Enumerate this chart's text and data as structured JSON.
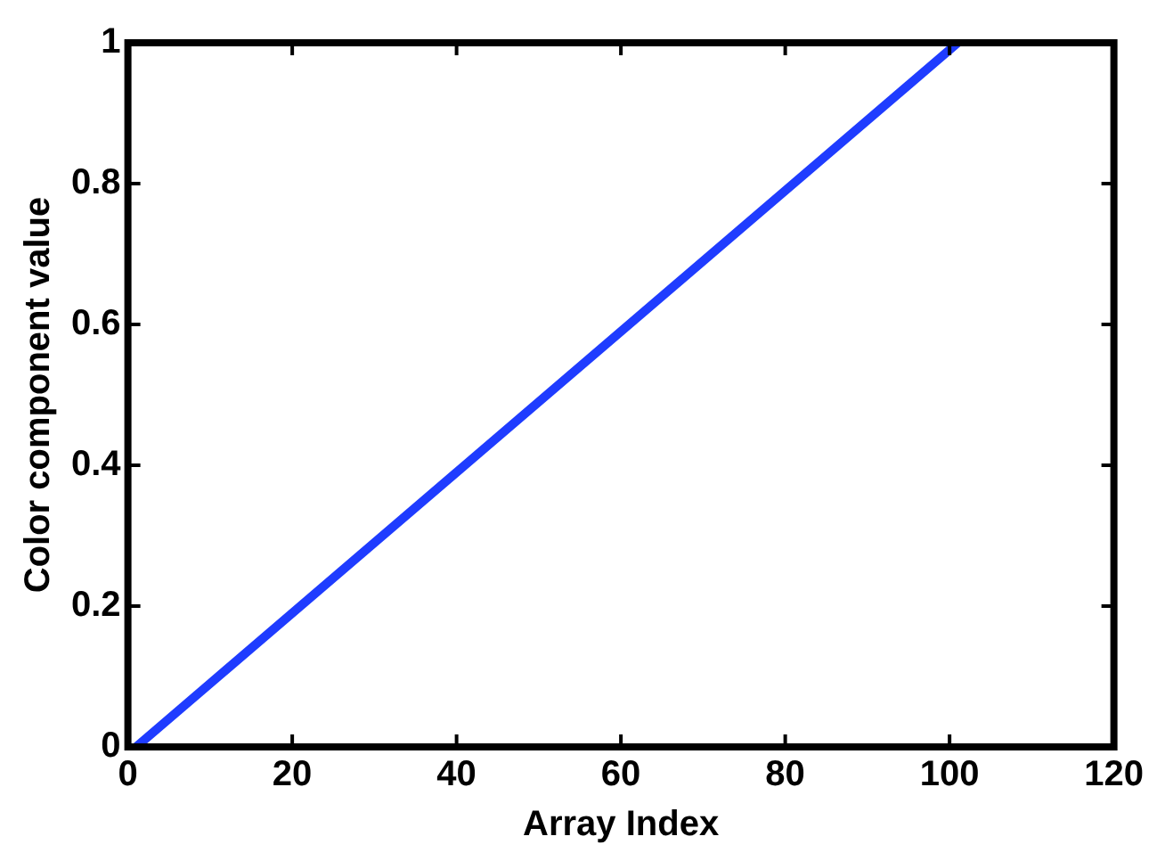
{
  "chart_data": {
    "type": "line",
    "xlabel": "Array Index",
    "ylabel": "Color component value",
    "x": [
      1,
      101
    ],
    "series": [
      {
        "color": "#1f3cff",
        "values": [
          0,
          1
        ]
      }
    ],
    "xlim": [
      0,
      120
    ],
    "xticks": [
      0,
      20,
      40,
      60,
      80,
      100,
      120
    ],
    "ylim": [
      0,
      1
    ],
    "yticks": [
      0,
      0.2,
      0.4,
      0.6,
      0.8,
      1
    ],
    "marker": "none",
    "line_style": "solid",
    "legend": false,
    "grid": false
  }
}
